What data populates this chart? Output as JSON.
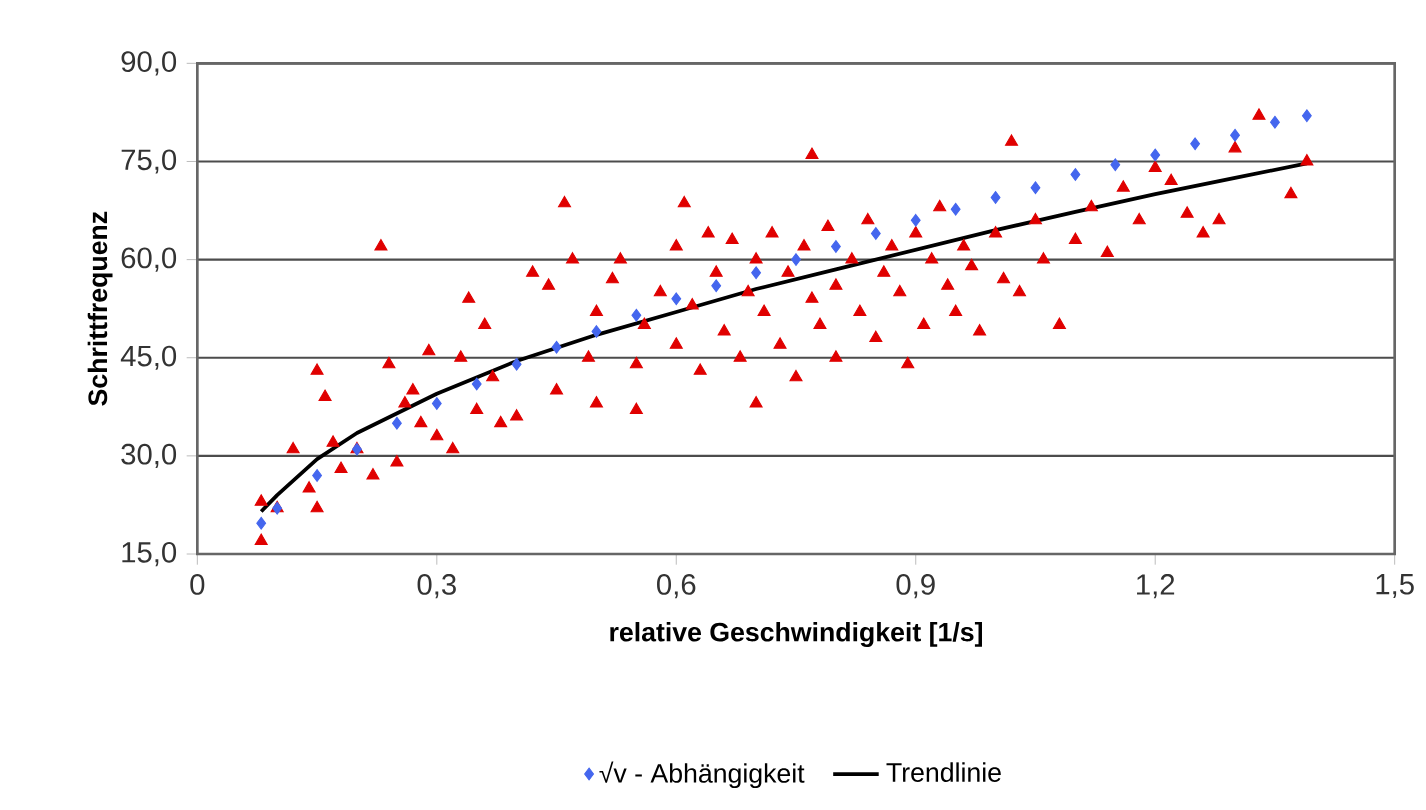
{
  "chart_data": {
    "type": "scatter",
    "xlabel": "relative Geschwindigkeit [1/s]",
    "ylabel": "Schrittfrequenz",
    "xlim": [
      0,
      1.5
    ],
    "ylim": [
      15,
      90
    ],
    "xticks": [
      0,
      {
        "value": 0.3,
        "label": "0,3"
      },
      {
        "value": 0.6,
        "label": "0,6"
      },
      {
        "value": 0.9,
        "label": "0,9"
      },
      {
        "value": 1.2,
        "label": "1,2"
      },
      {
        "value": 1.5,
        "label": "1,5"
      }
    ],
    "yticks": [
      {
        "value": 15,
        "label": "15,0"
      },
      {
        "value": 30,
        "label": "30,0"
      },
      {
        "value": 45,
        "label": "45,0"
      },
      {
        "value": 60,
        "label": "60,0"
      },
      {
        "value": 75,
        "label": "75,0"
      },
      {
        "value": 90,
        "label": "90,0"
      }
    ],
    "grid": "y",
    "legend": "bottom",
    "series": [
      {
        "color": "#e00000",
        "marker": "triangle",
        "x": [
          0.08,
          0.08,
          0.1,
          0.12,
          0.14,
          0.15,
          0.15,
          0.16,
          0.17,
          0.18,
          0.2,
          0.22,
          0.23,
          0.24,
          0.25,
          0.26,
          0.27,
          0.28,
          0.29,
          0.3,
          0.32,
          0.33,
          0.34,
          0.35,
          0.36,
          0.37,
          0.38,
          0.4,
          0.42,
          0.44,
          0.45,
          0.46,
          0.47,
          0.49,
          0.5,
          0.5,
          0.52,
          0.53,
          0.55,
          0.55,
          0.56,
          0.58,
          0.6,
          0.6,
          0.61,
          0.62,
          0.63,
          0.64,
          0.65,
          0.66,
          0.67,
          0.68,
          0.69,
          0.7,
          0.7,
          0.71,
          0.72,
          0.73,
          0.74,
          0.75,
          0.76,
          0.77,
          0.77,
          0.78,
          0.79,
          0.8,
          0.8,
          0.82,
          0.83,
          0.84,
          0.85,
          0.86,
          0.87,
          0.88,
          0.89,
          0.9,
          0.91,
          0.92,
          0.93,
          0.94,
          0.95,
          0.96,
          0.97,
          0.98,
          1.0,
          1.02,
          1.01,
          1.03,
          1.05,
          1.06,
          1.08,
          1.1,
          1.12,
          1.14,
          1.16,
          1.18,
          1.2,
          1.22,
          1.24,
          1.26,
          1.28,
          1.3,
          1.33,
          1.37,
          1.39
        ],
        "values": [
          23,
          17,
          22,
          31,
          25,
          43,
          22,
          39,
          32,
          28,
          31,
          27,
          62,
          44,
          29,
          38,
          40,
          35,
          46,
          33,
          31,
          45,
          54,
          37,
          50,
          42,
          35,
          36,
          58,
          56,
          40,
          68.6,
          60,
          45,
          38,
          52,
          57,
          60,
          44,
          37,
          50,
          55,
          47,
          62,
          68.6,
          53,
          43,
          64,
          58,
          49,
          63,
          45,
          55,
          60,
          38,
          52,
          64,
          47,
          58,
          42,
          62,
          54,
          76,
          50,
          65,
          56,
          45,
          60,
          52,
          66,
          48,
          58,
          62,
          55,
          44,
          64,
          50,
          60,
          68,
          56,
          52,
          62,
          59,
          49,
          64,
          78,
          57,
          55,
          66,
          60,
          50,
          63,
          68,
          61,
          71,
          66,
          74,
          72,
          67,
          64,
          66,
          77,
          82,
          70,
          75
        ]
      },
      {
        "name": "√v - Abhängigkeit",
        "color": "#4466ee",
        "marker": "diamond",
        "x": [
          0.08,
          0.1,
          0.15,
          0.2,
          0.25,
          0.3,
          0.35,
          0.4,
          0.45,
          0.5,
          0.55,
          0.6,
          0.65,
          0.7,
          0.75,
          0.8,
          0.85,
          0.9,
          0.95,
          1.0,
          1.05,
          1.1,
          1.15,
          1.2,
          1.25,
          1.3,
          1.35,
          1.39
        ],
        "values": [
          19.7,
          22,
          27,
          31,
          35,
          38,
          41,
          44,
          46.6,
          49,
          51.5,
          54,
          56,
          58,
          60,
          62,
          64,
          66,
          67.7,
          69.5,
          71,
          73,
          74.5,
          76,
          77.7,
          79,
          81,
          82
        ]
      },
      {
        "type": "line",
        "name": "Trendlinie",
        "color": "#000000",
        "marker": "none",
        "line_style": "solid",
        "x": [
          0.08,
          0.1,
          0.15,
          0.2,
          0.3,
          0.4,
          0.5,
          0.6,
          0.7,
          0.8,
          0.9,
          1.0,
          1.1,
          1.2,
          1.3,
          1.39
        ],
        "values": [
          21.5,
          24,
          29.5,
          33.5,
          39.5,
          44.5,
          48.5,
          52,
          55.5,
          58.5,
          61.5,
          64.5,
          67.3,
          70,
          72.5,
          74.7
        ]
      }
    ]
  }
}
